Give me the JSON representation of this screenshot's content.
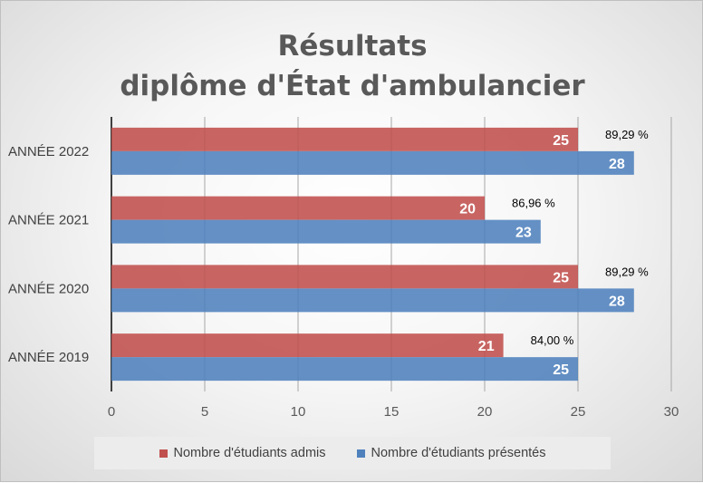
{
  "chart_data": {
    "type": "bar",
    "orientation": "horizontal",
    "title_lines": [
      "Résultats",
      "diplôme d'État d'ambulancier"
    ],
    "categories": [
      "ANNÉE 2022",
      "ANNÉE 2021",
      "ANNÉE 2020",
      "ANNÉE 2019"
    ],
    "series": [
      {
        "name": "Nombre d'étudiants admis",
        "values": [
          25,
          20,
          25,
          21
        ],
        "color": "#c0504d"
      },
      {
        "name": "Nombre d'étudiants présentés",
        "values": [
          28,
          23,
          28,
          25
        ],
        "color": "#4f81bd"
      }
    ],
    "annotations": [
      "89,29 %",
      "86,96 %",
      "89,29 %",
      "84,00 %"
    ],
    "xlim": [
      0,
      30
    ],
    "xticks": [
      "0",
      "5",
      "10",
      "15",
      "20",
      "25",
      "30"
    ],
    "grid": true,
    "legend_position": "bottom"
  }
}
